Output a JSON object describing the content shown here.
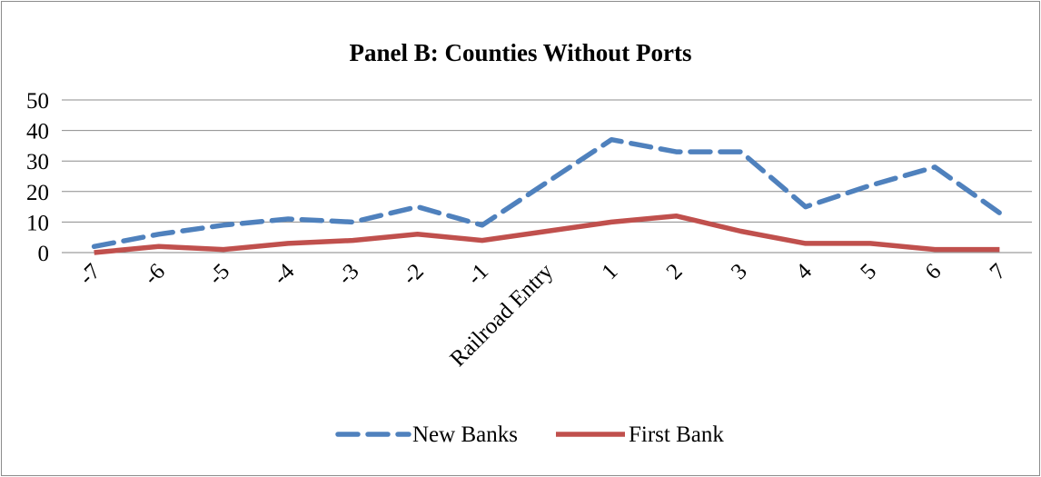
{
  "chart_data": {
    "type": "line",
    "title": "Panel B: Counties Without Ports",
    "categories": [
      "-7",
      "-6",
      "-5",
      "-4",
      "-3",
      "-2",
      "-1",
      "Railroad Entry",
      "1",
      "2",
      "3",
      "4",
      "5",
      "6",
      "7"
    ],
    "series": [
      {
        "name": "New Banks",
        "color": "#4f81bd",
        "style": "dashed",
        "values": [
          2,
          6,
          9,
          11,
          10,
          15,
          9,
          23,
          37,
          33,
          33,
          15,
          22,
          28,
          13
        ]
      },
      {
        "name": "First Bank",
        "color": "#c0504d",
        "style": "solid",
        "values": [
          0,
          2,
          1,
          3,
          4,
          6,
          4,
          7,
          10,
          12,
          7,
          3,
          3,
          1,
          1
        ]
      }
    ],
    "yticks": [
      "0",
      "10",
      "20",
      "30",
      "40",
      "50"
    ],
    "ylim": [
      0,
      50
    ],
    "grid": true,
    "legend_position": "bottom"
  }
}
